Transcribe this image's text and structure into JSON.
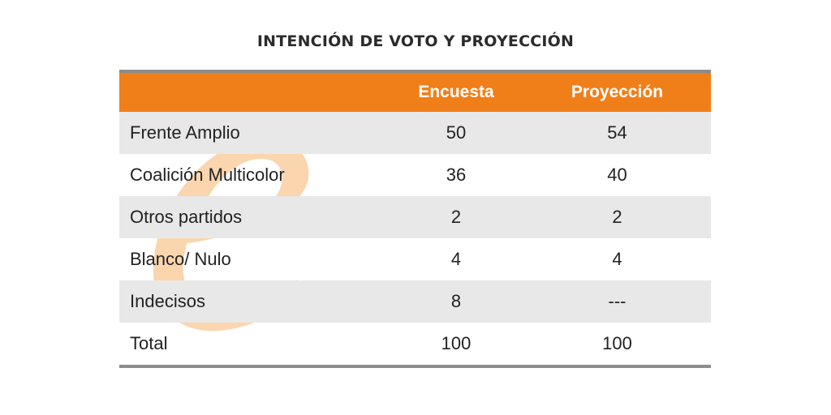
{
  "title": "INTENCIÓN DE VOTO Y PROYECCIÓN",
  "chart_data": {
    "type": "table",
    "title": "INTENCIÓN DE VOTO Y PROYECCIÓN",
    "columns": [
      "",
      "Encuesta",
      "Proyección"
    ],
    "rows": [
      {
        "label": "Frente Amplio",
        "encuesta": "50",
        "proyeccion": "54"
      },
      {
        "label": "Coalición Multicolor",
        "encuesta": "36",
        "proyeccion": "40"
      },
      {
        "label": "Otros partidos",
        "encuesta": "2",
        "proyeccion": "2"
      },
      {
        "label": "Blanco/ Nulo",
        "encuesta": "4",
        "proyeccion": "4"
      },
      {
        "label": "Indecisos",
        "encuesta": "8",
        "proyeccion": "---"
      },
      {
        "label": "Total",
        "encuesta": "100",
        "proyeccion": "100"
      }
    ]
  },
  "colors": {
    "header": "#f07f1a",
    "stripe": "#e8e8e8",
    "rule": "#8c8c8c",
    "watermark": "#f5b26b"
  },
  "watermark_icon": "letter-e-logo"
}
